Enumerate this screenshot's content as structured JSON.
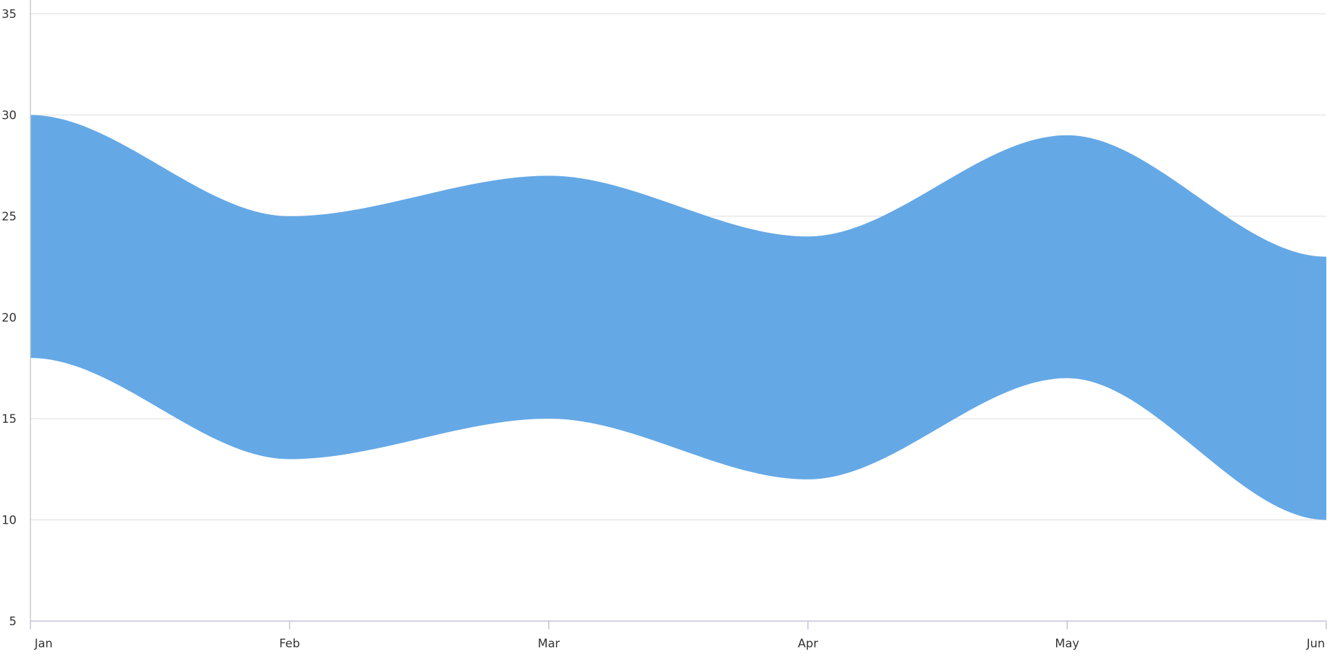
{
  "chart_data": {
    "type": "area",
    "subtype": "spline-range",
    "title": "",
    "xlabel": "",
    "ylabel": "",
    "categories": [
      "Jan",
      "Feb",
      "Mar",
      "Apr",
      "May",
      "Jun"
    ],
    "x_ticks": [
      "Jan",
      "Feb",
      "Mar",
      "Apr",
      "May",
      "Jun"
    ],
    "y_ticks": [
      "5",
      "10",
      "15",
      "20",
      "25",
      "30",
      "35"
    ],
    "ylim": [
      5,
      35
    ],
    "grid": true,
    "legend": "none",
    "series": [
      {
        "high": [
          30,
          25,
          27,
          24,
          29,
          23
        ],
        "low": [
          18,
          13,
          15,
          12,
          17,
          10
        ],
        "color": "#65A8E6"
      }
    ]
  }
}
